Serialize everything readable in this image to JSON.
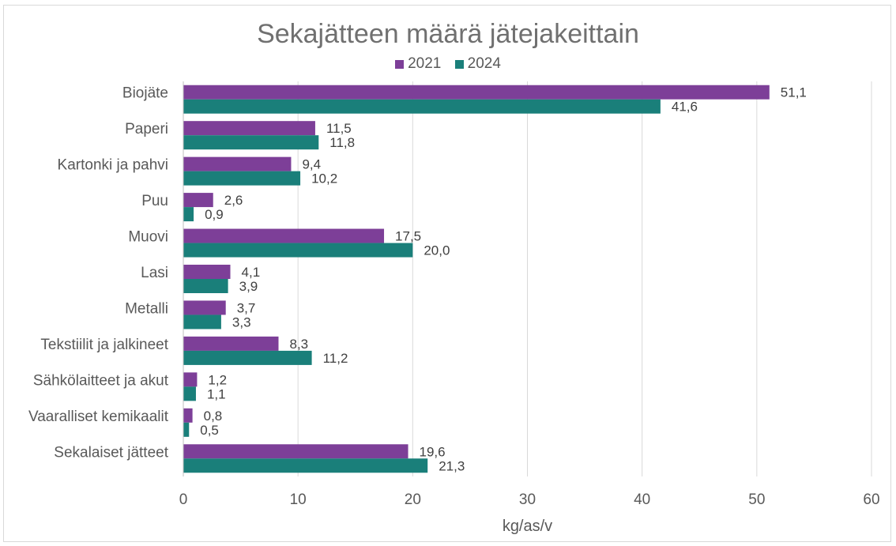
{
  "chart_data": {
    "type": "bar",
    "orientation": "horizontal",
    "title": "Sekajätteen määrä jätejakeittain",
    "xlabel": "kg/as/v",
    "ylabel": "",
    "xlim": [
      0,
      60
    ],
    "ticks": [
      0,
      10,
      20,
      30,
      40,
      50,
      60
    ],
    "tick_labels": [
      "0",
      "10",
      "20",
      "30",
      "40",
      "50",
      "60"
    ],
    "grid": true,
    "legend_position": "top-center",
    "categories": [
      "Biojäte",
      "Paperi",
      "Kartonki ja pahvi",
      "Puu",
      "Muovi",
      "Lasi",
      "Metalli",
      "Tekstiilit ja jalkineet",
      "Sähkölaitteet ja akut",
      "Vaaralliset kemikaalit",
      "Sekalaiset jätteet"
    ],
    "series": [
      {
        "name": "2021",
        "color": "#7d3f98",
        "values": [
          51.1,
          11.5,
          9.4,
          2.6,
          17.5,
          4.1,
          3.7,
          8.3,
          1.2,
          0.8,
          19.6
        ],
        "labels": [
          "51,1",
          "11,5",
          "9,4",
          "2,6",
          "17,5",
          "4,1",
          "3,7",
          "8,3",
          "1,2",
          "0,8",
          "19,6"
        ]
      },
      {
        "name": "2024",
        "color": "#1a7f7a",
        "values": [
          41.6,
          11.8,
          10.2,
          0.9,
          20.0,
          3.9,
          3.3,
          11.2,
          1.1,
          0.5,
          21.3
        ],
        "labels": [
          "41,6",
          "11,8",
          "10,2",
          "0,9",
          "20,0",
          "3,9",
          "3,3",
          "11,2",
          "1,1",
          "0,5",
          "21,3"
        ]
      }
    ]
  }
}
